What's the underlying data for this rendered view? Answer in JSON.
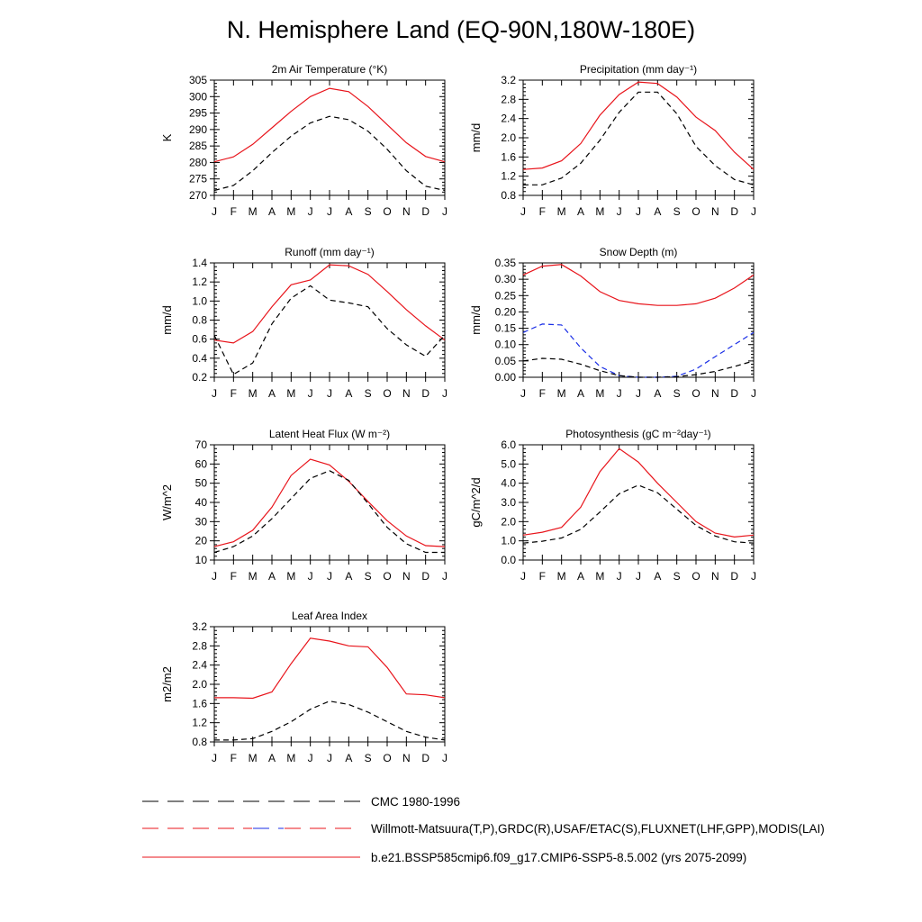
{
  "title": "N. Hemisphere Land (EQ-90N,180W-180E)",
  "months": [
    "J",
    "F",
    "M",
    "A",
    "M",
    "J",
    "J",
    "A",
    "S",
    "O",
    "N",
    "D",
    "J"
  ],
  "colors": {
    "model": "#e8141b",
    "obs": "#000000",
    "obs_alt": "#1a2ee6"
  },
  "chart_data": [
    {
      "type": "line",
      "title": "2m Air Temperature (°K)",
      "ylabel": "K",
      "ylim": [
        270,
        305
      ],
      "yticks": [
        "270",
        "275",
        "280",
        "285",
        "290",
        "295",
        "300",
        "305"
      ],
      "series": [
        {
          "name": "b.e21.BSSP585cmip6.f09_g17.CMIP6-SSP5-8.5.002 (yrs 2075-2099)",
          "style": "model",
          "values": [
            280.2,
            281.7,
            285.5,
            290.5,
            295.5,
            300.0,
            302.5,
            301.5,
            297.0,
            291.5,
            286.0,
            281.8,
            280.2
          ]
        },
        {
          "name": "CMC 1980-1996",
          "style": "obs",
          "values": [
            271.5,
            273.0,
            277.5,
            283.0,
            288.0,
            292.0,
            294.0,
            293.0,
            289.5,
            284.0,
            277.5,
            272.8,
            271.5
          ]
        }
      ]
    },
    {
      "type": "line",
      "title": "Precipitation (mm day⁻¹)",
      "ylabel": "mm/d",
      "ylim": [
        0.8,
        3.2
      ],
      "yticks": [
        "0.8",
        "1.2",
        "1.6",
        "2.0",
        "2.4",
        "2.8",
        "3.2"
      ],
      "series": [
        {
          "style": "model",
          "values": [
            1.34,
            1.37,
            1.52,
            1.88,
            2.47,
            2.9,
            3.16,
            3.13,
            2.85,
            2.43,
            2.15,
            1.7,
            1.34
          ]
        },
        {
          "style": "obs",
          "values": [
            1.02,
            1.02,
            1.16,
            1.47,
            1.95,
            2.53,
            2.95,
            2.95,
            2.5,
            1.82,
            1.42,
            1.13,
            1.02
          ]
        }
      ]
    },
    {
      "type": "line",
      "title": "Runoff (mm day⁻¹)",
      "ylabel": "mm/d",
      "ylim": [
        0.2,
        1.4
      ],
      "yticks": [
        "0.2",
        "0.4",
        "0.6",
        "0.8",
        "1.0",
        "1.2",
        "1.4"
      ],
      "series": [
        {
          "style": "model",
          "values": [
            0.59,
            0.56,
            0.68,
            0.94,
            1.17,
            1.22,
            1.38,
            1.37,
            1.28,
            1.1,
            0.91,
            0.74,
            0.59
          ]
        },
        {
          "style": "obs",
          "values": [
            0.64,
            0.23,
            0.35,
            0.76,
            1.03,
            1.16,
            1.01,
            0.98,
            0.94,
            0.71,
            0.54,
            0.42,
            0.64
          ]
        }
      ]
    },
    {
      "type": "line",
      "title": "Snow Depth (m)",
      "ylabel": "mm/d",
      "ylim": [
        0,
        0.35
      ],
      "yticks": [
        "0.00",
        "0.05",
        "0.10",
        "0.15",
        "0.20",
        "0.25",
        "0.30",
        "0.35"
      ],
      "series": [
        {
          "style": "model",
          "values": [
            0.313,
            0.34,
            0.345,
            0.31,
            0.262,
            0.235,
            0.225,
            0.22,
            0.22,
            0.225,
            0.242,
            0.273,
            0.313
          ]
        },
        {
          "style": "obs_alt",
          "values": [
            0.137,
            0.163,
            0.16,
            0.09,
            0.033,
            0.005,
            0.0,
            0.0,
            0.003,
            0.025,
            0.063,
            0.1,
            0.137
          ]
        },
        {
          "style": "obs",
          "values": [
            0.05,
            0.058,
            0.055,
            0.04,
            0.02,
            0.005,
            0.0,
            0.0,
            0.002,
            0.008,
            0.018,
            0.033,
            0.05
          ]
        }
      ]
    },
    {
      "type": "line",
      "title": "Latent Heat Flux (W m⁻²)",
      "ylabel": "W/m^2",
      "ylim": [
        10,
        70
      ],
      "yticks": [
        "10",
        "20",
        "30",
        "40",
        "50",
        "60",
        "70"
      ],
      "series": [
        {
          "style": "model",
          "values": [
            17.0,
            19.5,
            25.5,
            37.5,
            54.0,
            62.5,
            59.5,
            51.0,
            40.5,
            30.5,
            22.5,
            17.5,
            17.0
          ]
        },
        {
          "style": "obs",
          "values": [
            14.0,
            17.0,
            22.5,
            31.5,
            42.0,
            52.5,
            56.5,
            51.5,
            39.5,
            27.0,
            18.5,
            14.0,
            14.0
          ]
        }
      ]
    },
    {
      "type": "line",
      "title": "Photosynthesis (gC m⁻²day⁻¹)",
      "ylabel": "gC/m^2/d",
      "ylim": [
        0,
        6
      ],
      "yticks": [
        "0.0",
        "1.0",
        "2.0",
        "3.0",
        "4.0",
        "5.0",
        "6.0"
      ],
      "series": [
        {
          "style": "model",
          "values": [
            1.3,
            1.45,
            1.7,
            2.75,
            4.6,
            5.8,
            5.1,
            4.0,
            3.0,
            2.0,
            1.4,
            1.2,
            1.3
          ]
        },
        {
          "style": "obs",
          "values": [
            0.88,
            0.98,
            1.15,
            1.6,
            2.5,
            3.45,
            3.9,
            3.5,
            2.65,
            1.8,
            1.25,
            0.95,
            0.88
          ]
        }
      ]
    },
    {
      "type": "line",
      "title": "Leaf Area Index",
      "ylabel": "m2/m2",
      "ylim": [
        0.8,
        3.2
      ],
      "yticks": [
        "0.8",
        "1.2",
        "1.6",
        "2.0",
        "2.4",
        "2.8",
        "3.2"
      ],
      "series": [
        {
          "style": "model",
          "values": [
            1.72,
            1.72,
            1.71,
            1.84,
            2.43,
            2.96,
            2.9,
            2.8,
            2.78,
            2.35,
            1.8,
            1.78,
            1.72
          ]
        },
        {
          "style": "obs",
          "values": [
            0.84,
            0.84,
            0.87,
            1.02,
            1.22,
            1.48,
            1.65,
            1.58,
            1.42,
            1.22,
            1.02,
            0.9,
            0.84
          ]
        }
      ]
    }
  ],
  "legend": [
    {
      "label": "CMC 1980-1996",
      "style": "obs-dash"
    },
    {
      "label": "Willmott-Matsuura(T,P),GRDC(R),USAF/ETAC(S),FLUXNET(LHF,GPP),MODIS(LAI)",
      "style": "mixed-dash"
    },
    {
      "label": "b.e21.BSSP585cmip6.f09_g17.CMIP6-SSP5-8.5.002 (yrs 2075-2099)",
      "style": "solid"
    }
  ]
}
